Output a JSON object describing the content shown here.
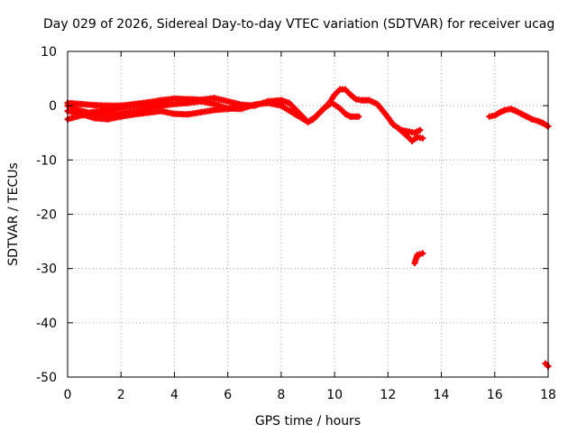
{
  "chart_data": {
    "type": "scatter",
    "title": "Day 029 of 2026, Sidereal Day-to-day VTEC variation (SDTVAR) for receiver ucag",
    "xlabel": "GPS time / hours",
    "ylabel": "SDTVAR / TECUs",
    "xlim": [
      0,
      18
    ],
    "ylim": [
      -50,
      10
    ],
    "x_ticks": [
      "0",
      "2",
      "4",
      "6",
      "8",
      "10",
      "12",
      "14",
      "16",
      "18"
    ],
    "y_ticks": [
      "10",
      "0",
      "-10",
      "-20",
      "-30",
      "-40",
      "-50"
    ],
    "grid": true,
    "series": [
      {
        "name": "SDTVAR",
        "color": "#ff0000",
        "marker": "plus",
        "segments": [
          [
            [
              0.0,
              0.5
            ],
            [
              0.5,
              0.3
            ],
            [
              1.0,
              0.1
            ],
            [
              1.5,
              0.0
            ],
            [
              2.0,
              0.0
            ],
            [
              2.5,
              0.3
            ],
            [
              3.0,
              0.6
            ],
            [
              3.5,
              1.0
            ],
            [
              4.0,
              1.3
            ],
            [
              4.5,
              1.2
            ],
            [
              5.0,
              1.1
            ],
            [
              5.5,
              1.4
            ],
            [
              6.0,
              0.8
            ],
            [
              6.5,
              0.2
            ],
            [
              7.0,
              0.0
            ],
            [
              7.5,
              0.8
            ],
            [
              8.0,
              1.0
            ],
            [
              8.3,
              0.5
            ],
            [
              8.6,
              -1.0
            ],
            [
              8.8,
              -2.0
            ],
            [
              9.0,
              -3.0
            ],
            [
              9.2,
              -2.5
            ],
            [
              9.5,
              -1.0
            ],
            [
              9.8,
              0.5
            ],
            [
              10.0,
              2.0
            ],
            [
              10.2,
              3.0
            ],
            [
              10.4,
              3.0
            ],
            [
              10.6,
              2.0
            ],
            [
              10.8,
              1.2
            ],
            [
              11.0,
              1.0
            ],
            [
              11.3,
              1.0
            ],
            [
              11.6,
              0.3
            ],
            [
              11.9,
              -1.5
            ],
            [
              12.2,
              -3.5
            ],
            [
              12.5,
              -4.5
            ],
            [
              12.8,
              -4.8
            ],
            [
              13.0,
              -5.0
            ],
            [
              13.2,
              -4.5
            ]
          ],
          [
            [
              0.0,
              -2.5
            ],
            [
              0.5,
              -1.8
            ],
            [
              1.0,
              -1.6
            ],
            [
              1.5,
              -1.8
            ],
            [
              2.0,
              -1.5
            ],
            [
              2.5,
              -1.0
            ],
            [
              3.0,
              -0.5
            ],
            [
              3.5,
              0.0
            ],
            [
              4.0,
              0.3
            ],
            [
              4.5,
              0.5
            ],
            [
              5.0,
              0.8
            ],
            [
              5.5,
              0.3
            ],
            [
              6.0,
              -0.5
            ],
            [
              6.5,
              -0.6
            ],
            [
              7.0,
              0.2
            ],
            [
              7.5,
              0.5
            ],
            [
              8.0,
              0.0
            ],
            [
              8.5,
              -1.5
            ],
            [
              9.0,
              -3.0
            ],
            [
              9.3,
              -2.0
            ],
            [
              9.6,
              -0.5
            ],
            [
              9.9,
              0.5
            ],
            [
              10.2,
              -0.5
            ],
            [
              10.4,
              -1.5
            ],
            [
              10.6,
              -2.0
            ],
            [
              10.9,
              -2.0
            ]
          ],
          [
            [
              0.0,
              -1.0
            ],
            [
              0.5,
              -1.5
            ],
            [
              1.0,
              -2.3
            ],
            [
              1.5,
              -2.5
            ],
            [
              2.0,
              -2.0
            ],
            [
              2.5,
              -1.6
            ],
            [
              3.0,
              -1.3
            ],
            [
              3.5,
              -1.0
            ],
            [
              4.0,
              -1.5
            ],
            [
              4.5,
              -1.6
            ],
            [
              5.0,
              -1.2
            ],
            [
              5.5,
              -0.8
            ],
            [
              6.0,
              -0.6
            ],
            [
              6.3,
              -0.3
            ]
          ],
          [
            [
              0.0,
              0.0
            ],
            [
              0.4,
              -0.8
            ],
            [
              0.8,
              -1.3
            ],
            [
              1.2,
              -1.0
            ],
            [
              1.6,
              -0.8
            ],
            [
              2.0,
              -0.4
            ],
            [
              2.5,
              0.0
            ],
            [
              3.0,
              0.3
            ],
            [
              3.5,
              0.6
            ],
            [
              3.8,
              0.5
            ]
          ],
          [
            [
              12.4,
              -4.2
            ],
            [
              12.7,
              -5.5
            ],
            [
              12.9,
              -6.5
            ],
            [
              13.1,
              -5.8
            ],
            [
              13.3,
              -6.0
            ]
          ],
          [
            [
              13.0,
              -29.0
            ],
            [
              13.1,
              -27.5
            ],
            [
              13.3,
              -27.2
            ]
          ],
          [
            [
              15.8,
              -2.0
            ],
            [
              16.0,
              -1.8
            ],
            [
              16.2,
              -1.2
            ],
            [
              16.4,
              -0.8
            ],
            [
              16.6,
              -0.6
            ],
            [
              16.8,
              -1.0
            ],
            [
              17.0,
              -1.5
            ],
            [
              17.2,
              -2.0
            ],
            [
              17.4,
              -2.5
            ],
            [
              17.6,
              -2.8
            ],
            [
              17.8,
              -3.2
            ],
            [
              18.0,
              -3.8
            ]
          ],
          [
            [
              17.9,
              -47.5
            ],
            [
              18.0,
              -48.0
            ]
          ]
        ]
      }
    ]
  }
}
